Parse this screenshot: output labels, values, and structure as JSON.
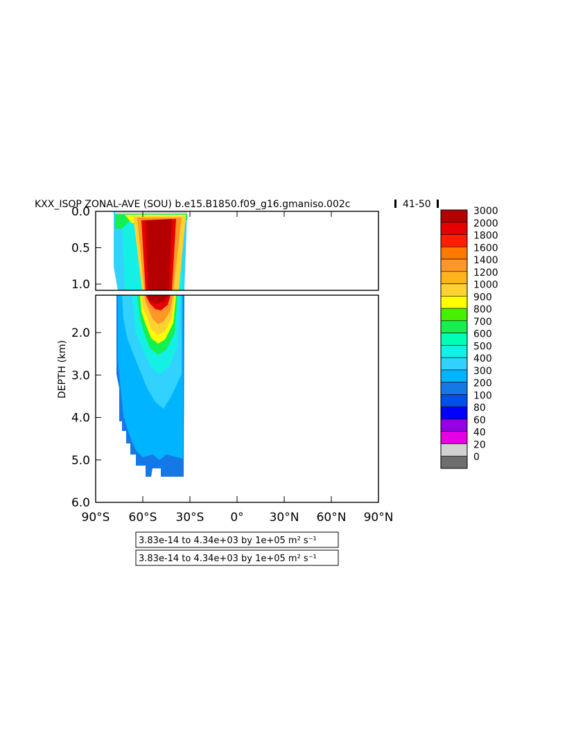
{
  "title": "KXX_ISOP ZONAL-AVE (SOU) b.e15.B1850.f09_g16.gmaniso.002c",
  "years_label": "41-50",
  "chart_data": {
    "type": "heatmap",
    "title": "KXX_ISOP ZONAL-AVE (SOU) b.e15.B1850.f09_g16.gmaniso.002c",
    "ylabel": "DEPTH (km)",
    "xlabel": "",
    "x_ticks": [
      "90°S",
      "60°S",
      "30°S",
      "0°",
      "30°N",
      "60°N",
      "90°N"
    ],
    "x_tick_values": [
      -90,
      -60,
      -30,
      0,
      30,
      60,
      90
    ],
    "y_ticks_upper": [
      "0.0",
      "0.5",
      "1.0"
    ],
    "y_tick_values_upper": [
      0.0,
      0.5,
      1.0
    ],
    "y_ticks_lower": [
      "2.0",
      "3.0",
      "4.0",
      "5.0",
      "6.0"
    ],
    "y_tick_values_lower": [
      2.0,
      3.0,
      4.0,
      5.0,
      6.0
    ],
    "xlim": [
      -90,
      90
    ],
    "ylim_upper": [
      0.0,
      1.1
    ],
    "ylim_lower": [
      1.1,
      6.0
    ],
    "levels": [
      "0",
      "20",
      "40",
      "60",
      "80",
      "100",
      "200",
      "300",
      "400",
      "500",
      "600",
      "700",
      "800",
      "900",
      "1000",
      "1200",
      "1400",
      "1600",
      "1800",
      "2000",
      "3000"
    ],
    "level_colors": [
      "#6e6e6e",
      "#d2d2d2",
      "#e600e6",
      "#9600e6",
      "#0000ff",
      "#0050e6",
      "#1478e6",
      "#00b4ff",
      "#32d2ff",
      "#14f0e6",
      "#00ffb4",
      "#14f050",
      "#46f000",
      "#ffff00",
      "#ffd232",
      "#ffb41e",
      "#ff9628",
      "#ff7800",
      "#ff1e00",
      "#e60000",
      "#b40000"
    ],
    "field_lat_range": [
      -76,
      -29
    ],
    "field_depth_max_km": 5.4,
    "min_label": "3.83e-14 to 4.34e+03 by 1e+05 m² s⁻¹",
    "max_label": "3.83e-14 to 4.34e+03 by 1e+05 m² s⁻¹"
  }
}
